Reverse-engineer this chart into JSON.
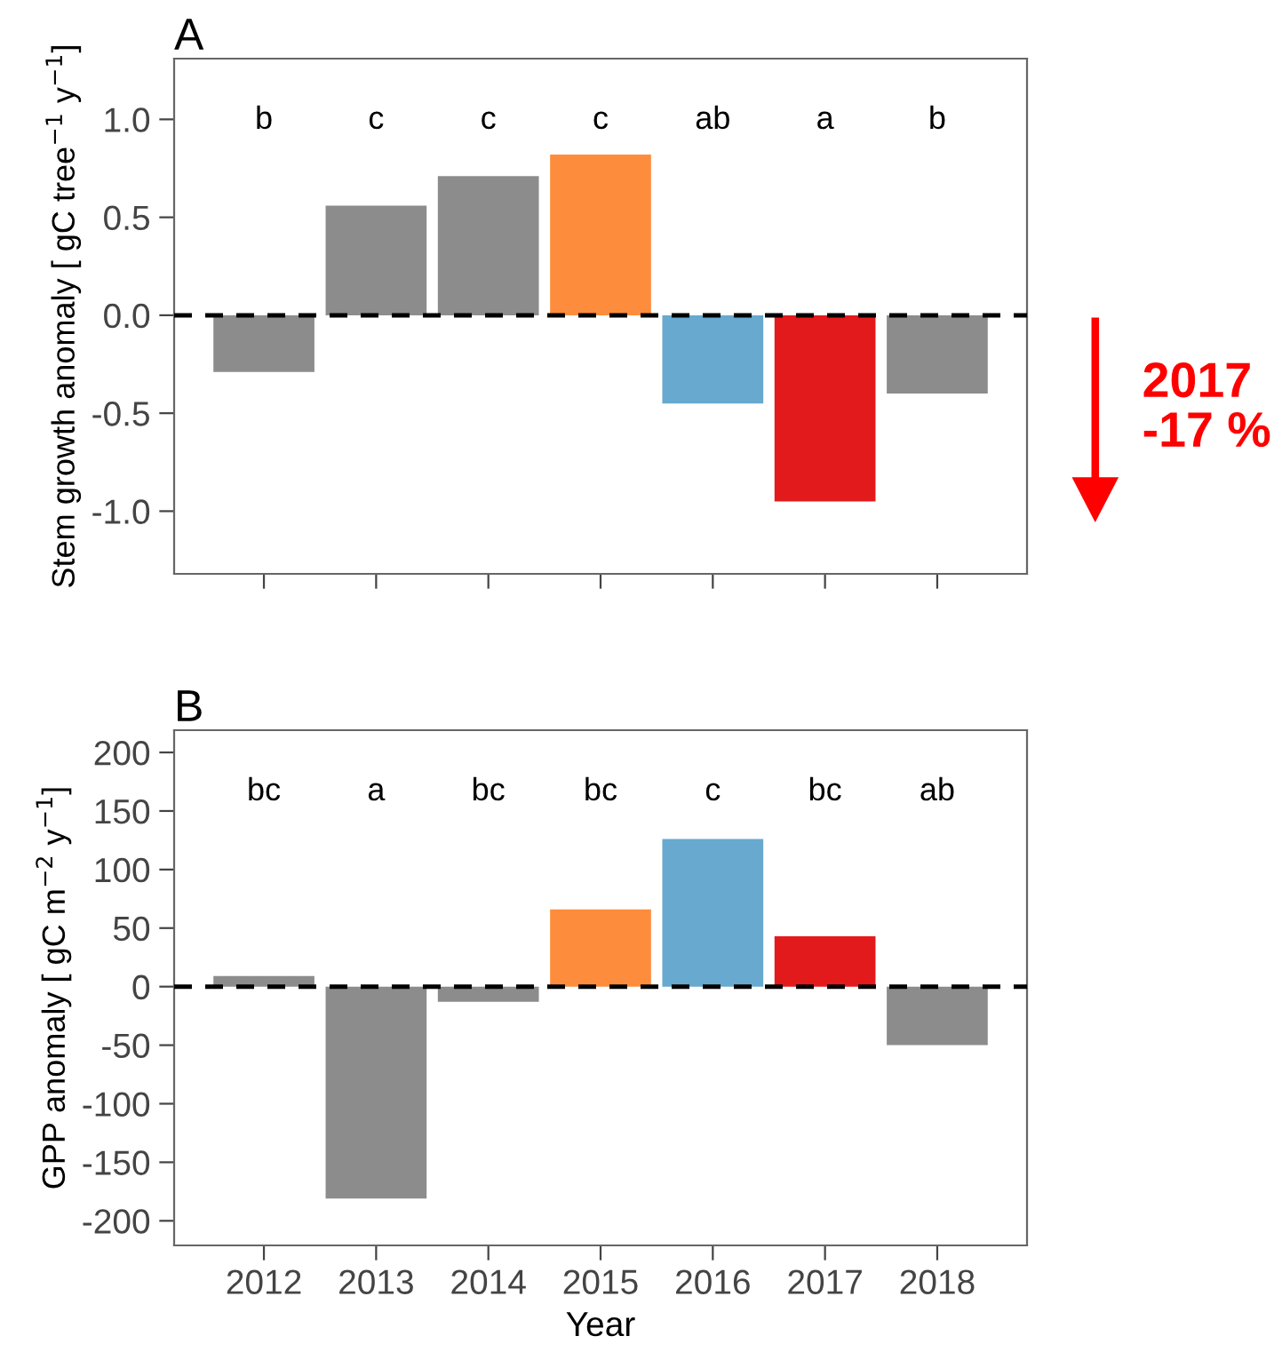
{
  "chart_data": [
    {
      "type": "bar",
      "title": "A",
      "ylabel": "Stem growth anomaly [ gC tree$^{−1}$ y$^{−1}$]",
      "categories": [
        "2012",
        "2013",
        "2014",
        "2015",
        "2016",
        "2017",
        "2018"
      ],
      "values": [
        -0.29,
        0.56,
        0.71,
        0.82,
        -0.45,
        -0.95,
        -0.4
      ],
      "colors": [
        "#8c8c8c",
        "#8c8c8c",
        "#8c8c8c",
        "#fd8d3c",
        "#67a9cf",
        "#e31a1c",
        "#8c8c8c"
      ],
      "ylim": [
        -1.32,
        1.31
      ],
      "yticks": [
        {
          "value": -1.0,
          "label": "-1.0"
        },
        {
          "value": -0.5,
          "label": "-0.5"
        },
        {
          "value": 0.0,
          "label": "0.0"
        },
        {
          "value": 0.5,
          "label": "0.5"
        },
        {
          "value": 1.0,
          "label": "1.0"
        }
      ],
      "tick_labels": "y",
      "grid": false,
      "ref_lines": [
        {
          "axis": "y",
          "value": 0,
          "color": "#000000",
          "line_style": "dashed"
        }
      ],
      "annotations": [
        "b",
        "c",
        "c",
        "c",
        "ab",
        "a",
        "b",
        "2017\n-17 %"
      ]
    },
    {
      "type": "bar",
      "title": "B",
      "xlabel": "Year",
      "ylabel": "GPP anomaly [ gC m$^{−2}$ y$^{−1}$]",
      "categories": [
        "2012",
        "2013",
        "2014",
        "2015",
        "2016",
        "2017",
        "2018"
      ],
      "values": [
        9,
        -181,
        -13,
        66,
        126,
        43,
        -50
      ],
      "colors": [
        "#8c8c8c",
        "#8c8c8c",
        "#8c8c8c",
        "#fd8d3c",
        "#67a9cf",
        "#e31a1c",
        "#8c8c8c"
      ],
      "ylim": [
        -221,
        219
      ],
      "yticks": [
        -200,
        -150,
        -100,
        -50,
        0,
        50,
        100,
        150,
        200
      ],
      "grid": false,
      "ref_lines": [
        {
          "axis": "y",
          "value": 0,
          "color": "#000000",
          "line_style": "dashed"
        }
      ],
      "annotations": [
        "bc",
        "a",
        "bc",
        "bc",
        "c",
        "bc",
        "ab"
      ]
    }
  ]
}
